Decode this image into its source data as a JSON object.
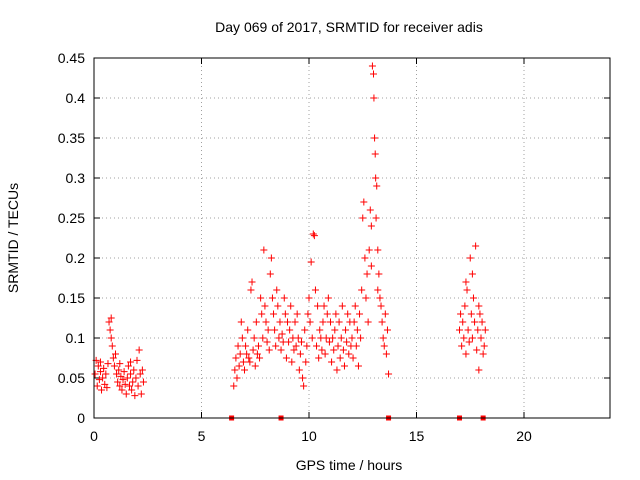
{
  "chart_data": {
    "type": "scatter",
    "title": "Day 069 of 2017, SRMTID for receiver adis",
    "xlabel": "GPS time / hours",
    "ylabel": "SRMTID / TECUs",
    "xlim": [
      0,
      24
    ],
    "ylim": [
      0,
      0.45
    ],
    "xticks": [
      0,
      5,
      10,
      15,
      20
    ],
    "xtick_labels": [
      "0",
      "5",
      "10",
      "15",
      "20"
    ],
    "yticks": [
      0,
      0.05,
      0.1,
      0.15,
      0.2,
      0.25,
      0.3,
      0.35,
      0.4,
      0.45
    ],
    "ytick_labels": [
      "0",
      "0.05",
      "0.1",
      "0.15",
      "0.2",
      "0.25",
      "0.3",
      "0.35",
      "0.4",
      "0.45"
    ],
    "grid": true,
    "marker": "+",
    "color": "#ff0000",
    "series": [
      {
        "name": "SRMTID",
        "points": [
          [
            0.05,
            0.055
          ],
          [
            0.1,
            0.072
          ],
          [
            0.15,
            0.04
          ],
          [
            0.2,
            0.065
          ],
          [
            0.25,
            0.048
          ],
          [
            0.3,
            0.058
          ],
          [
            0.35,
            0.035
          ],
          [
            0.4,
            0.05
          ],
          [
            0.45,
            0.062
          ],
          [
            0.5,
            0.042
          ],
          [
            0.55,
            0.055
          ],
          [
            0.6,
            0.038
          ],
          [
            0.65,
            0.068
          ],
          [
            0.7,
            0.12
          ],
          [
            0.75,
            0.11
          ],
          [
            0.8,
            0.1
          ],
          [
            0.85,
            0.09
          ],
          [
            0.9,
            0.075
          ],
          [
            0.95,
            0.065
          ],
          [
            1.0,
            0.08
          ],
          [
            1.05,
            0.055
          ],
          [
            1.1,
            0.045
          ],
          [
            1.15,
            0.06
          ],
          [
            1.2,
            0.04
          ],
          [
            1.25,
            0.052
          ],
          [
            1.3,
            0.035
          ],
          [
            1.35,
            0.048
          ],
          [
            1.4,
            0.058
          ],
          [
            1.45,
            0.042
          ],
          [
            1.5,
            0.03
          ],
          [
            1.55,
            0.05
          ],
          [
            1.6,
            0.065
          ],
          [
            1.65,
            0.04
          ],
          [
            1.7,
            0.055
          ],
          [
            1.75,
            0.035
          ],
          [
            1.8,
            0.045
          ],
          [
            1.85,
            0.06
          ],
          [
            1.9,
            0.028
          ],
          [
            1.95,
            0.05
          ],
          [
            2.0,
            0.072
          ],
          [
            2.05,
            0.04
          ],
          [
            2.1,
            0.085
          ],
          [
            2.15,
            0.055
          ],
          [
            2.2,
            0.03
          ],
          [
            2.25,
            0.06
          ],
          [
            2.3,
            0.045
          ],
          [
            0.3,
            0.07
          ],
          [
            0.8,
            0.125
          ],
          [
            1.2,
            0.068
          ],
          [
            1.7,
            0.07
          ],
          [
            6.5,
            0.04
          ],
          [
            6.55,
            0.06
          ],
          [
            6.6,
            0.075
          ],
          [
            6.65,
            0.05
          ],
          [
            6.7,
            0.09
          ],
          [
            6.75,
            0.065
          ],
          [
            6.8,
            0.08
          ],
          [
            6.85,
            0.12
          ],
          [
            6.9,
            0.1
          ],
          [
            6.95,
            0.07
          ],
          [
            7.0,
            0.06
          ],
          [
            7.05,
            0.09
          ],
          [
            7.1,
            0.08
          ],
          [
            7.15,
            0.11
          ],
          [
            7.2,
            0.075
          ],
          [
            7.25,
            0.07
          ],
          [
            7.3,
            0.16
          ],
          [
            7.35,
            0.17
          ],
          [
            7.4,
            0.085
          ],
          [
            7.45,
            0.1
          ],
          [
            7.5,
            0.065
          ],
          [
            7.55,
            0.12
          ],
          [
            7.6,
            0.08
          ],
          [
            7.65,
            0.09
          ],
          [
            7.7,
            0.075
          ],
          [
            7.75,
            0.15
          ],
          [
            7.8,
            0.13
          ],
          [
            7.85,
            0.1
          ],
          [
            7.9,
            0.21
          ],
          [
            7.95,
            0.14
          ],
          [
            8.0,
            0.12
          ],
          [
            8.05,
            0.095
          ],
          [
            8.1,
            0.11
          ],
          [
            8.15,
            0.085
          ],
          [
            8.2,
            0.18
          ],
          [
            8.25,
            0.2
          ],
          [
            8.3,
            0.15
          ],
          [
            8.35,
            0.13
          ],
          [
            8.4,
            0.11
          ],
          [
            8.45,
            0.09
          ],
          [
            8.5,
            0.16
          ],
          [
            8.55,
            0.14
          ],
          [
            8.6,
            0.1
          ],
          [
            8.65,
            0.12
          ],
          [
            8.7,
            0.085
          ],
          [
            8.75,
            0.105
          ],
          [
            8.8,
            0.095
          ],
          [
            8.85,
            0.15
          ],
          [
            8.9,
            0.13
          ],
          [
            8.95,
            0.075
          ],
          [
            9.0,
            0.12
          ],
          [
            9.05,
            0.095
          ],
          [
            9.1,
            0.11
          ],
          [
            9.15,
            0.14
          ],
          [
            9.2,
            0.07
          ],
          [
            9.25,
            0.1
          ],
          [
            9.3,
            0.085
          ],
          [
            9.35,
            0.12
          ],
          [
            9.4,
            0.09
          ],
          [
            9.45,
            0.13
          ],
          [
            9.5,
            0.1
          ],
          [
            9.55,
            0.06
          ],
          [
            9.6,
            0.08
          ],
          [
            9.65,
            0.095
          ],
          [
            9.7,
            0.05
          ],
          [
            9.75,
            0.04
          ],
          [
            9.8,
            0.11
          ],
          [
            9.85,
            0.07
          ],
          [
            9.9,
            0.09
          ],
          [
            9.95,
            0.13
          ],
          [
            10.0,
            0.15
          ],
          [
            10.05,
            0.12
          ],
          [
            10.1,
            0.195
          ],
          [
            10.15,
            0.1
          ],
          [
            10.2,
            0.23
          ],
          [
            10.25,
            0.228
          ],
          [
            10.3,
            0.16
          ],
          [
            10.35,
            0.09
          ],
          [
            10.4,
            0.14
          ],
          [
            10.45,
            0.075
          ],
          [
            10.5,
            0.11
          ],
          [
            10.55,
            0.1
          ],
          [
            10.6,
            0.085
          ],
          [
            10.65,
            0.12
          ],
          [
            10.7,
            0.14
          ],
          [
            10.75,
            0.08
          ],
          [
            10.8,
            0.1
          ],
          [
            10.85,
            0.13
          ],
          [
            10.9,
            0.15
          ],
          [
            10.95,
            0.095
          ],
          [
            11.0,
            0.12
          ],
          [
            11.05,
            0.07
          ],
          [
            11.1,
            0.1
          ],
          [
            11.15,
            0.085
          ],
          [
            11.2,
            0.11
          ],
          [
            11.25,
            0.13
          ],
          [
            11.3,
            0.06
          ],
          [
            11.35,
            0.09
          ],
          [
            11.4,
            0.12
          ],
          [
            11.45,
            0.075
          ],
          [
            11.5,
            0.1
          ],
          [
            11.55,
            0.14
          ],
          [
            11.6,
            0.085
          ],
          [
            11.65,
            0.065
          ],
          [
            11.7,
            0.11
          ],
          [
            11.75,
            0.095
          ],
          [
            11.8,
            0.13
          ],
          [
            11.85,
            0.08
          ],
          [
            11.9,
            0.12
          ],
          [
            11.95,
            0.09
          ],
          [
            12.0,
            0.1
          ],
          [
            12.05,
            0.075
          ],
          [
            12.1,
            0.12
          ],
          [
            12.15,
            0.14
          ],
          [
            12.2,
            0.09
          ],
          [
            12.25,
            0.11
          ],
          [
            12.3,
            0.065
          ],
          [
            12.35,
            0.13
          ],
          [
            12.4,
            0.1
          ],
          [
            12.45,
            0.16
          ],
          [
            12.5,
            0.25
          ],
          [
            12.55,
            0.27
          ],
          [
            12.6,
            0.2
          ],
          [
            12.65,
            0.15
          ],
          [
            12.7,
            0.18
          ],
          [
            12.75,
            0.12
          ],
          [
            12.8,
            0.21
          ],
          [
            12.85,
            0.26
          ],
          [
            12.9,
            0.24
          ],
          [
            12.95,
            0.44
          ],
          [
            13.0,
            0.43
          ],
          [
            13.02,
            0.4
          ],
          [
            13.05,
            0.35
          ],
          [
            13.08,
            0.33
          ],
          [
            13.1,
            0.3
          ],
          [
            13.12,
            0.25
          ],
          [
            13.15,
            0.29
          ],
          [
            13.2,
            0.21
          ],
          [
            13.25,
            0.18
          ],
          [
            13.3,
            0.15
          ],
          [
            13.35,
            0.14
          ],
          [
            13.4,
            0.12
          ],
          [
            13.45,
            0.1
          ],
          [
            13.5,
            0.09
          ],
          [
            13.55,
            0.13
          ],
          [
            13.6,
            0.08
          ],
          [
            13.65,
            0.11
          ],
          [
            13.7,
            0.055
          ],
          [
            13.2,
            0.16
          ],
          [
            12.9,
            0.19
          ],
          [
            17.0,
            0.11
          ],
          [
            17.05,
            0.13
          ],
          [
            17.1,
            0.09
          ],
          [
            17.15,
            0.12
          ],
          [
            17.2,
            0.1
          ],
          [
            17.25,
            0.14
          ],
          [
            17.3,
            0.08
          ],
          [
            17.35,
            0.16
          ],
          [
            17.4,
            0.11
          ],
          [
            17.45,
            0.095
          ],
          [
            17.5,
            0.2
          ],
          [
            17.55,
            0.13
          ],
          [
            17.6,
            0.1
          ],
          [
            17.65,
            0.15
          ],
          [
            17.7,
            0.12
          ],
          [
            17.75,
            0.215
          ],
          [
            17.8,
            0.085
          ],
          [
            17.85,
            0.11
          ],
          [
            17.9,
            0.06
          ],
          [
            17.95,
            0.13
          ],
          [
            18.0,
            0.1
          ],
          [
            18.05,
            0.12
          ],
          [
            18.1,
            0.08
          ],
          [
            18.15,
            0.09
          ],
          [
            18.2,
            0.11
          ],
          [
            17.3,
            0.17
          ],
          [
            17.6,
            0.18
          ],
          [
            17.9,
            0.14
          ]
        ]
      }
    ],
    "zero_markers": [
      6.4,
      8.7,
      13.7,
      17.0,
      18.1
    ]
  }
}
